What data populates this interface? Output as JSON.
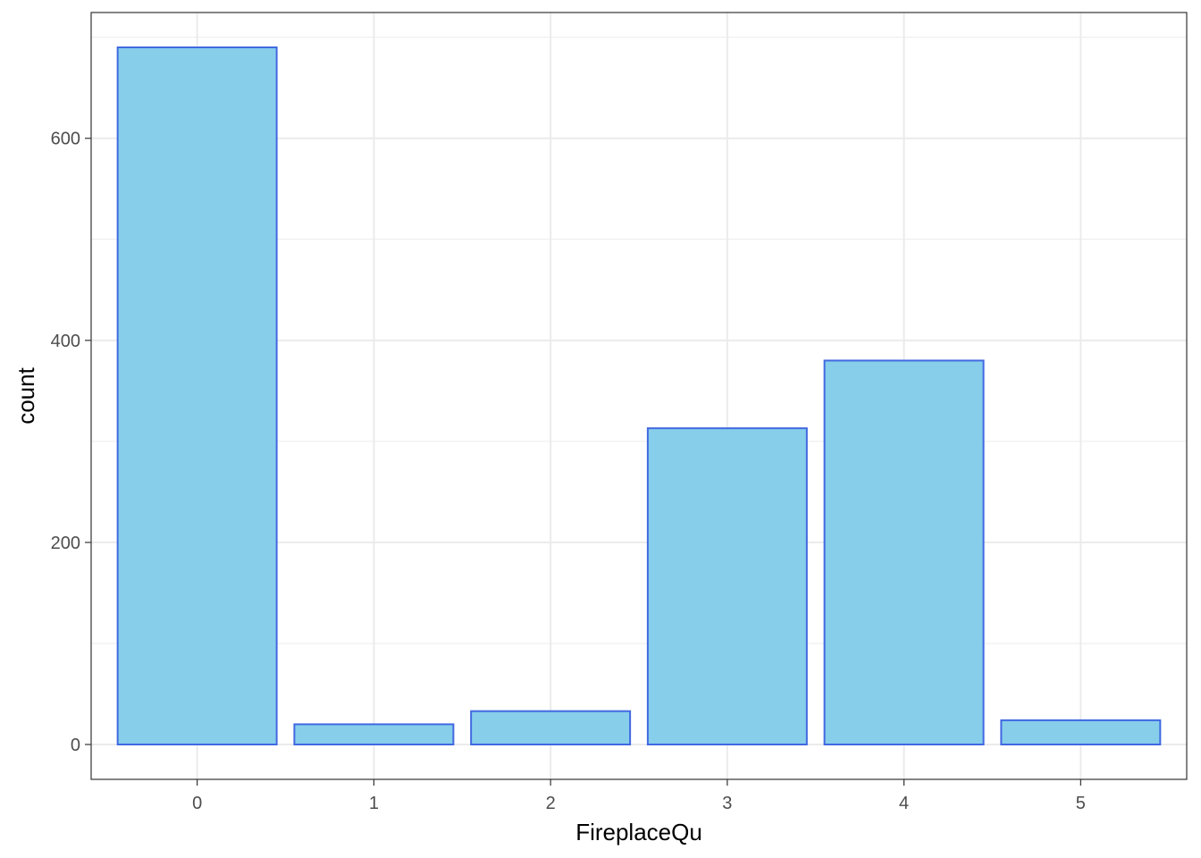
{
  "chart_data": {
    "type": "bar",
    "categories": [
      "0",
      "1",
      "2",
      "3",
      "4",
      "5"
    ],
    "values": [
      690,
      20,
      33,
      313,
      380,
      24
    ],
    "xlabel": "FireplaceQu",
    "ylabel": "count",
    "ylim": [
      -34.5,
      724.5
    ],
    "yticks": [
      0,
      200,
      400,
      600
    ],
    "grid": true,
    "colors": {
      "fill": "#87CEEB",
      "stroke": "#4169E1",
      "grid": "#EBEBEB",
      "panel_border": "#333333"
    }
  }
}
